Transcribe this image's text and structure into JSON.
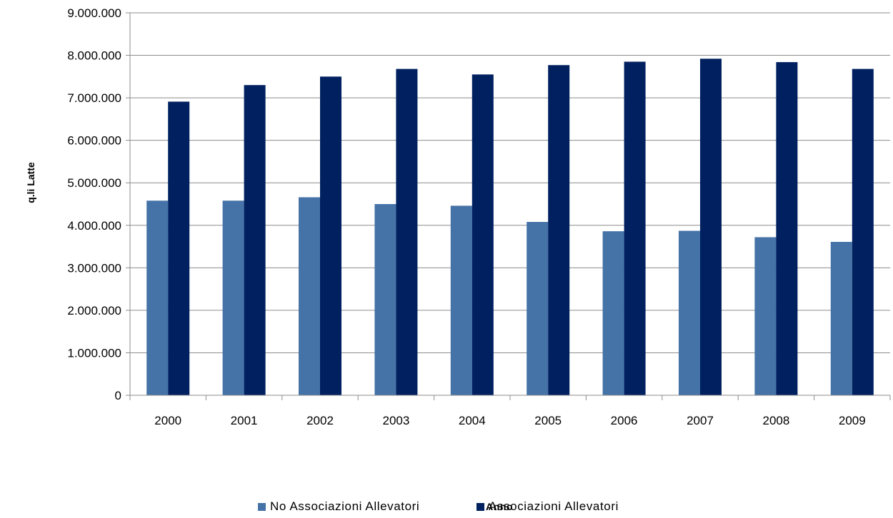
{
  "chart_data": {
    "type": "bar",
    "categories": [
      "2000",
      "2001",
      "2002",
      "2003",
      "2004",
      "2005",
      "2006",
      "2007",
      "2008",
      "2009"
    ],
    "series": [
      {
        "name": "No Associazioni Allevatori",
        "color": "#4572A7",
        "values": [
          4580000,
          4580000,
          4660000,
          4500000,
          4460000,
          4080000,
          3860000,
          3870000,
          3720000,
          3610000
        ]
      },
      {
        "name": "Associazioni Allevatori",
        "color": "#002060",
        "values": [
          6910000,
          7300000,
          7500000,
          7680000,
          7550000,
          7770000,
          7850000,
          7920000,
          7840000,
          7680000
        ]
      }
    ],
    "ylabel": "q.li Latte",
    "xlabel": "Anno",
    "ylim": [
      0,
      9000000
    ],
    "yticks": [
      "0",
      "1.000.000",
      "2.000.000",
      "3.000.000",
      "4.000.000",
      "5.000.000",
      "6.000.000",
      "7.000.000",
      "8.000.000",
      "9.000.000"
    ],
    "grid": true,
    "legend_position": "bottom"
  }
}
